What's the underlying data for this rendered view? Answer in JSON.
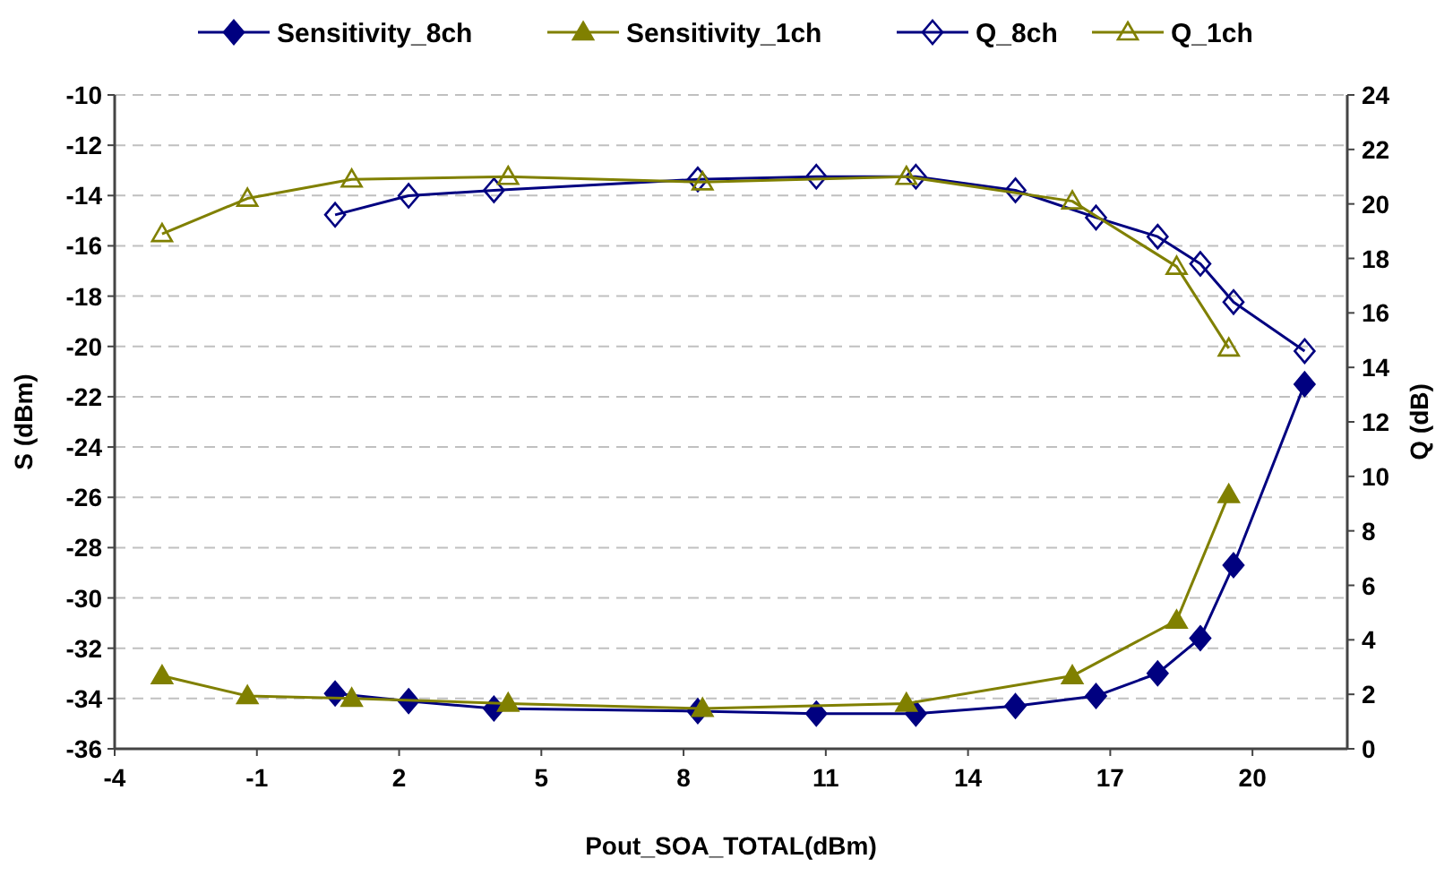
{
  "chart_data": {
    "type": "line",
    "xlabel": "Pout_SOA_TOTAL(dBm)",
    "ylabel": "S (dBm)",
    "y2label": "Q (dB)",
    "xlim": [
      -4,
      22
    ],
    "xticks": [
      -4,
      -1,
      2,
      5,
      8,
      11,
      14,
      17,
      20
    ],
    "ylim": [
      -36,
      -10
    ],
    "yticks": [
      -36,
      -34,
      -32,
      -30,
      -28,
      -26,
      -24,
      -22,
      -20,
      -18,
      -16,
      -14,
      -12,
      -10
    ],
    "y2lim": [
      0,
      24
    ],
    "y2ticks": [
      0,
      2,
      4,
      6,
      8,
      10,
      12,
      14,
      16,
      18,
      20,
      22,
      24
    ],
    "grid": "y",
    "legend": "top",
    "series": [
      {
        "name": "Sensitivity_8ch",
        "color": "#000080",
        "marker": "diamond",
        "x": [
          0.65,
          2.2,
          4.0,
          8.3,
          10.8,
          12.9,
          15.0,
          16.7,
          18.0,
          18.9,
          19.6,
          21.1
        ],
        "values": [
          -33.8,
          -34.1,
          -34.4,
          -34.5,
          -34.6,
          -34.6,
          -34.3,
          -33.9,
          -33.0,
          -31.6,
          -28.7,
          -21.5
        ]
      },
      {
        "name": "Sensitivity_1ch",
        "color": "#808000",
        "marker": "triangle",
        "x": [
          -3.0,
          -1.2,
          1.0,
          4.3,
          8.4,
          12.7,
          16.2,
          18.4,
          19.5
        ],
        "values": [
          -33.1,
          -33.9,
          -34.0,
          -34.2,
          -34.4,
          -34.2,
          -33.1,
          -30.9,
          -25.9
        ]
      },
      {
        "name": "Q_8ch",
        "color": "#000080",
        "marker": "diamond",
        "axis": "y2",
        "x": [
          0.65,
          2.2,
          4.0,
          8.3,
          10.8,
          12.9,
          15.0,
          16.7,
          18.0,
          18.9,
          19.6,
          21.1
        ],
        "values": [
          19.6,
          20.3,
          20.5,
          20.9,
          21.0,
          21.0,
          20.5,
          19.5,
          18.8,
          17.8,
          16.4,
          14.6
        ]
      },
      {
        "name": "Q_1ch",
        "color": "#808000",
        "marker": "triangle",
        "axis": "y2",
        "x": [
          -3.0,
          -1.2,
          1.0,
          4.3,
          8.4,
          12.7,
          16.2,
          18.4,
          19.5
        ],
        "values": [
          18.9,
          20.2,
          20.9,
          21.0,
          20.8,
          21.0,
          20.1,
          17.7,
          14.7
        ]
      }
    ]
  }
}
